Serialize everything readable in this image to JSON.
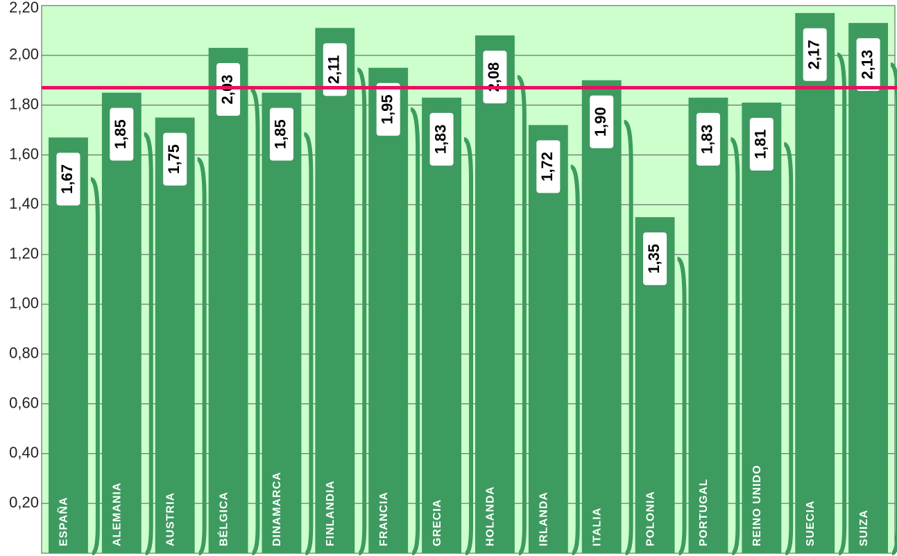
{
  "chart_data": {
    "type": "bar",
    "categories": [
      "ESPAÑA",
      "ALEMANIA",
      "AUSTRIA",
      "BÉLGICA",
      "DINAMARCA",
      "FINLANDIA",
      "FRANCIA",
      "GRECIA",
      "HOLANDA",
      "IRLANDA",
      "ITALIA",
      "POLONIA",
      "PORTUGAL",
      "REINO UNIDO",
      "SUECIA",
      "SUIZA"
    ],
    "values": [
      1.67,
      1.85,
      1.75,
      2.03,
      1.85,
      2.11,
      1.95,
      1.83,
      2.08,
      1.72,
      1.9,
      1.35,
      1.83,
      1.81,
      2.17,
      2.13
    ],
    "value_labels": [
      "1,67",
      "1,85",
      "1,75",
      "2,03",
      "1,85",
      "2,11",
      "1,95",
      "1,83",
      "2,08",
      "1,72",
      "1,90",
      "1,35",
      "1,83",
      "1,81",
      "2,17",
      "2,13"
    ],
    "color": "#3d9b5f",
    "ylim": [
      0,
      2.2
    ],
    "yticks": [
      {
        "value": 0.2,
        "label": "0,20"
      },
      {
        "value": 0.4,
        "label": "0,40"
      },
      {
        "value": 0.6,
        "label": "0,60"
      },
      {
        "value": 0.8,
        "label": "0,80"
      },
      {
        "value": 1.0,
        "label": "1,00"
      },
      {
        "value": 1.2,
        "label": "1,20"
      },
      {
        "value": 1.4,
        "label": "1,40"
      },
      {
        "value": 1.6,
        "label": "1,60"
      },
      {
        "value": 1.8,
        "label": "1,80"
      },
      {
        "value": 2.0,
        "label": "2,00"
      },
      {
        "value": 2.2,
        "label": "2,20"
      }
    ],
    "grid": true,
    "reference_line": {
      "value": 1.87,
      "color": "#e8125f"
    }
  }
}
